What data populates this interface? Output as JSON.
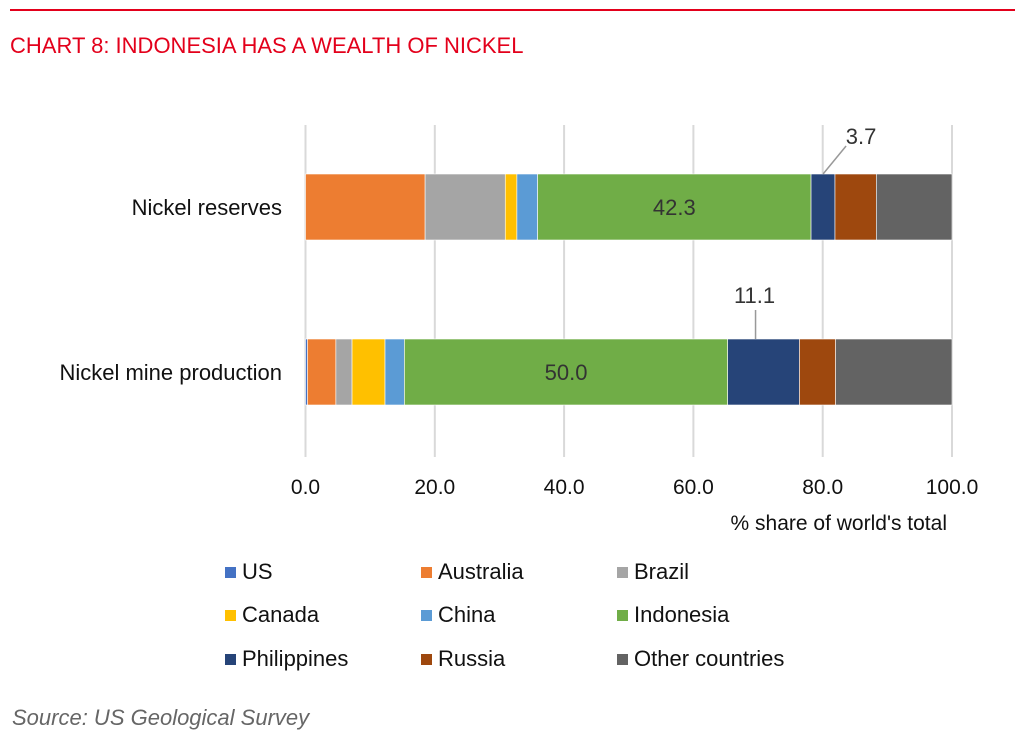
{
  "title": "CHART 8: INDONESIA HAS A WEALTH OF NICKEL",
  "source": "Source: US Geological Survey",
  "chart_data": {
    "type": "bar",
    "orientation": "horizontal",
    "stacked": true,
    "categories": [
      "Nickel reserves",
      "Nickel mine production"
    ],
    "xlabel": "% share of world's total",
    "xlim": [
      0,
      100
    ],
    "xticks": [
      "0.0",
      "20.0",
      "40.0",
      "60.0",
      "80.0",
      "100.0"
    ],
    "grid": true,
    "legend_position": "bottom",
    "series": [
      {
        "name": "US",
        "color": "#4472c4",
        "values": [
          0,
          0.3
        ]
      },
      {
        "name": "Australia",
        "color": "#ed7d31",
        "values": [
          18.5,
          4.4
        ]
      },
      {
        "name": "Brazil",
        "color": "#a5a5a5",
        "values": [
          12.4,
          2.5
        ]
      },
      {
        "name": "Canada",
        "color": "#ffc000",
        "values": [
          1.8,
          5.1
        ]
      },
      {
        "name": "China",
        "color": "#5b9bd5",
        "values": [
          3.2,
          3.0
        ]
      },
      {
        "name": "Indonesia",
        "color": "#70ad47",
        "values": [
          42.3,
          50.0
        ]
      },
      {
        "name": "Philippines",
        "color": "#264478",
        "values": [
          3.7,
          11.1
        ]
      },
      {
        "name": "Russia",
        "color": "#9e480e",
        "values": [
          6.4,
          5.6
        ]
      },
      {
        "name": "Other countries",
        "color": "#636363",
        "values": [
          11.7,
          18.0
        ]
      }
    ],
    "data_labels": [
      {
        "series": "Indonesia",
        "category": "Nickel reserves",
        "text": "42.3",
        "callout": false
      },
      {
        "series": "Philippines",
        "category": "Nickel reserves",
        "text": "3.7",
        "callout": true
      },
      {
        "series": "Indonesia",
        "category": "Nickel mine production",
        "text": "50.0",
        "callout": false
      },
      {
        "series": "Philippines",
        "category": "Nickel mine production",
        "text": "11.1",
        "callout": true
      }
    ]
  }
}
